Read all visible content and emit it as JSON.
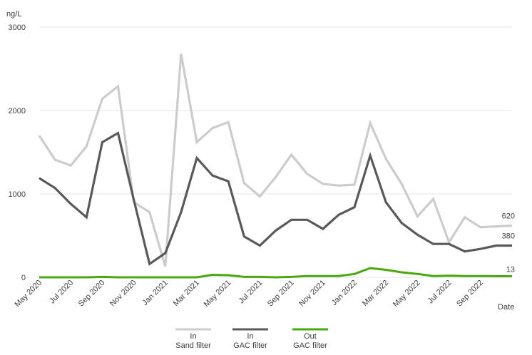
{
  "chart_data": {
    "type": "line",
    "ylabel": "ng/L",
    "xlabel": "Date",
    "ylim": [
      0,
      3000
    ],
    "yticks": [
      0,
      1000,
      2000,
      3000
    ],
    "grid": "horizontal",
    "legend_position": "bottom",
    "x": [
      "May 2020",
      "Jun 2020",
      "Jul 2020",
      "Aug 2020",
      "Sep 2020",
      "Oct 2020",
      "Nov 2020",
      "Dec 2020",
      "Jan 2021",
      "Feb 2021",
      "Mar 2021",
      "Apr 2021",
      "May 2021",
      "Jun 2021",
      "Jul 2021",
      "Aug 2021",
      "Sep 2021",
      "Oct 2021",
      "Nov 2021",
      "Dec 2021",
      "Jan 2022",
      "Feb 2022",
      "Mar 2022",
      "Apr 2022",
      "May 2022",
      "Jun 2022",
      "Jul 2022",
      "Aug 2022",
      "Sep 2022",
      "Oct 2022",
      "Nov 2022"
    ],
    "x_tick_labels": [
      "May 2020",
      "Jul 2020",
      "Sep 2020",
      "Nov 2020",
      "Jan 2021",
      "Mar 2021",
      "May 2021",
      "Jul 2021",
      "Sep 2021",
      "Nov 2021",
      "Jan 2022",
      "Mar 2022",
      "May 2022",
      "Jul 2022",
      "Sep 2022"
    ],
    "series": [
      {
        "name": "In\nSand filter",
        "color": "#cccccc",
        "values": [
          1700,
          1410,
          1340,
          1570,
          2140,
          2290,
          900,
          780,
          130,
          2680,
          1620,
          1790,
          1860,
          1130,
          970,
          1200,
          1470,
          1240,
          1120,
          1100,
          1110,
          1850,
          1420,
          1120,
          730,
          940,
          420,
          720,
          600,
          610,
          620
        ],
        "end_label": "620"
      },
      {
        "name": "In\nGAC filter",
        "color": "#595959",
        "values": [
          1190,
          1070,
          880,
          720,
          1620,
          1730,
          930,
          160,
          290,
          780,
          1430,
          1220,
          1150,
          490,
          380,
          560,
          690,
          690,
          580,
          750,
          840,
          1460,
          900,
          650,
          510,
          400,
          400,
          310,
          340,
          380,
          380
        ],
        "end_label": "380"
      },
      {
        "name": "Out\nGAC filter",
        "color": "#4aa80f",
        "values": [
          0,
          0,
          0,
          0,
          5,
          0,
          0,
          0,
          0,
          0,
          0,
          30,
          25,
          5,
          5,
          0,
          5,
          15,
          15,
          15,
          40,
          110,
          90,
          60,
          40,
          15,
          20,
          15,
          15,
          13,
          13
        ],
        "end_label": "13"
      }
    ],
    "legend": [
      {
        "line1": "In",
        "line2": "Sand filter",
        "color": "#cccccc"
      },
      {
        "line1": "In",
        "line2": "GAC filter",
        "color": "#595959"
      },
      {
        "line1": "Out",
        "line2": "GAC filter",
        "color": "#4aa80f"
      }
    ]
  }
}
